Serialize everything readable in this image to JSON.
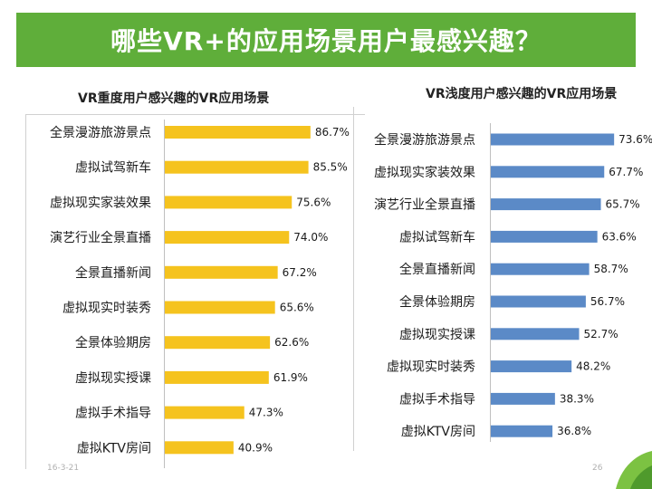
{
  "page_title": "哪些VR+的应用场景用户最感兴趣？",
  "footer": {
    "date": "16-3-21",
    "page": "26"
  },
  "colors": {
    "title_bg": "#5fae3a",
    "left_bar": "#f5c31e",
    "right_bar": "#5b8ac7"
  },
  "chart_data": [
    {
      "type": "bar",
      "orientation": "horizontal",
      "title": "VR重度用户感兴趣的VR应用场景",
      "categories": [
        "全景漫游旅游景点",
        "虚拟试驾新车",
        "虚拟现实家装效果",
        "演艺行业全景直播",
        "全景直播新闻",
        "虚拟现实时装秀",
        "全景体验期房",
        "虚拟现实授课",
        "虚拟手术指导",
        "虚拟KTV房间"
      ],
      "values": [
        86.7,
        85.5,
        75.6,
        74.0,
        67.2,
        65.6,
        62.6,
        61.9,
        47.3,
        40.9
      ],
      "value_labels": [
        "86.7%",
        "85.5%",
        "75.6%",
        "74.0%",
        "67.2%",
        "65.6%",
        "62.6%",
        "61.9%",
        "47.3%",
        "40.9%"
      ],
      "unit": "%",
      "xlim": [
        0,
        100
      ],
      "color": "#f5c31e"
    },
    {
      "type": "bar",
      "orientation": "horizontal",
      "title": "VR浅度用户感兴趣的VR应用场景",
      "categories": [
        "全景漫游旅游景点",
        "虚拟现实家装效果",
        "演艺行业全景直播",
        "虚拟试驾新车",
        "全景直播新闻",
        "全景体验期房",
        "虚拟现实授课",
        "虚拟现实时装秀",
        "虚拟手术指导",
        "虚拟KTV房间"
      ],
      "values": [
        73.6,
        67.7,
        65.7,
        63.6,
        58.7,
        56.7,
        52.7,
        48.2,
        38.3,
        36.8
      ],
      "value_labels": [
        "73.6%",
        "67.7%",
        "65.7%",
        "63.6%",
        "58.7%",
        "56.7%",
        "52.7%",
        "48.2%",
        "38.3%",
        "36.8%"
      ],
      "unit": "%",
      "xlim": [
        0,
        100
      ],
      "color": "#5b8ac7"
    }
  ]
}
